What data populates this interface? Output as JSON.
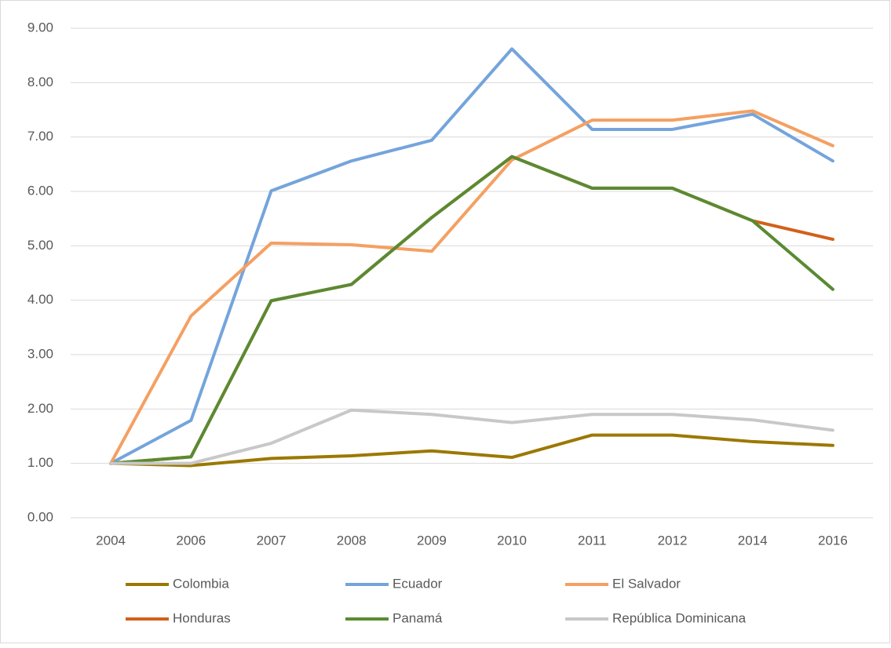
{
  "chart_data": {
    "type": "line",
    "categories": [
      "2004",
      "2006",
      "2007",
      "2008",
      "2009",
      "2010",
      "2011",
      "2012",
      "2014",
      "2016"
    ],
    "series": [
      {
        "name": "Colombia",
        "color": "#9c7800",
        "values": [
          1.0,
          0.96,
          1.09,
          1.14,
          1.23,
          1.11,
          1.52,
          1.52,
          1.4,
          1.33
        ]
      },
      {
        "name": "Ecuador",
        "color": "#74a4dc",
        "values": [
          1.0,
          1.79,
          6.01,
          6.56,
          6.94,
          8.62,
          7.14,
          7.14,
          7.42,
          6.56
        ]
      },
      {
        "name": "El Salvador",
        "color": "#f4a062",
        "values": [
          1.0,
          3.71,
          5.05,
          5.02,
          4.9,
          6.58,
          7.31,
          7.31,
          7.48,
          6.84
        ]
      },
      {
        "name": "Honduras",
        "color": "#d2601a",
        "values": [
          1.0,
          1.12,
          3.99,
          4.29,
          5.52,
          6.64,
          6.06,
          6.06,
          5.46,
          5.12
        ]
      },
      {
        "name": "Panamá",
        "color": "#5a8a32",
        "values": [
          1.0,
          1.12,
          3.99,
          4.29,
          5.52,
          6.64,
          6.06,
          6.06,
          5.46,
          4.2
        ]
      },
      {
        "name": "República Dominicana",
        "color": "#c8c8c8",
        "values": [
          1.0,
          1.0,
          1.37,
          1.98,
          1.9,
          1.75,
          1.9,
          1.9,
          1.8,
          1.61
        ]
      }
    ],
    "ylim": [
      0,
      9
    ],
    "yticks": [
      {
        "value": 0,
        "label": "0.00"
      },
      {
        "value": 1,
        "label": "1.00"
      },
      {
        "value": 2,
        "label": "2.00"
      },
      {
        "value": 3,
        "label": "3.00"
      },
      {
        "value": 4,
        "label": "4.00"
      },
      {
        "value": 5,
        "label": "5.00"
      },
      {
        "value": 6,
        "label": "6.00"
      },
      {
        "value": 7,
        "label": "7.00"
      },
      {
        "value": 8,
        "label": "8.00"
      },
      {
        "value": 9,
        "label": "9.00"
      }
    ],
    "grid": true,
    "legend": "bottom"
  }
}
